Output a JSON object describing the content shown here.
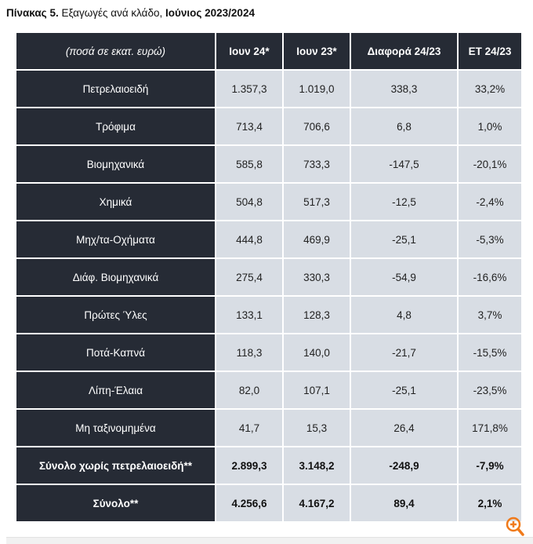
{
  "title": {
    "prefix": "Πίνακας 5.",
    "middle": " Εξαγωγές ανά κλάδο, ",
    "suffix": "Ιούνιος 2023/2024"
  },
  "headers": [
    "(ποσά σε εκατ. ευρώ)",
    "Ιουν 24*",
    "Ιουν 23*",
    "Διαφορά 24/23",
    "ΕΤ 24/23"
  ],
  "rows": [
    [
      "Πετρελαιοειδή",
      "1.357,3",
      "1.019,0",
      "338,3",
      "33,2%"
    ],
    [
      "Τρόφιμα",
      "713,4",
      "706,6",
      "6,8",
      "1,0%"
    ],
    [
      "Βιομηχανικά",
      "585,8",
      "733,3",
      "-147,5",
      "-20,1%"
    ],
    [
      "Χημικά",
      "504,8",
      "517,3",
      "-12,5",
      "-2,4%"
    ],
    [
      "Μηχ/τα-Οχήματα",
      "444,8",
      "469,9",
      "-25,1",
      "-5,3%"
    ],
    [
      "Διάφ. Βιομηχανικά",
      "275,4",
      "330,3",
      "-54,9",
      "-16,6%"
    ],
    [
      "Πρώτες Ύλες",
      "133,1",
      "128,3",
      "4,8",
      "3,7%"
    ],
    [
      "Ποτά-Καπνά",
      "118,3",
      "140,0",
      "-21,7",
      "-15,5%"
    ],
    [
      "Λίπη-Έλαια",
      "82,0",
      "107,1",
      "-25,1",
      "-23,5%"
    ],
    [
      "Μη ταξινομημένα",
      "41,7",
      "15,3",
      "26,4",
      "171,8%"
    ],
    [
      "Σύνολο χωρίς πετρελαιοειδή**",
      "2.899,3",
      "3.148,2",
      "-248,9",
      "-7,9%"
    ],
    [
      "Σύνολο**",
      "4.256,6",
      "4.167,2",
      "89,4",
      "2,1%"
    ]
  ],
  "bold_rows": [
    10,
    11
  ],
  "icons": {
    "zoom": "zoom-in-icon"
  },
  "colors": {
    "dark": "#262b35",
    "cell": "#d8dde4",
    "accent": "#f07a1a"
  }
}
